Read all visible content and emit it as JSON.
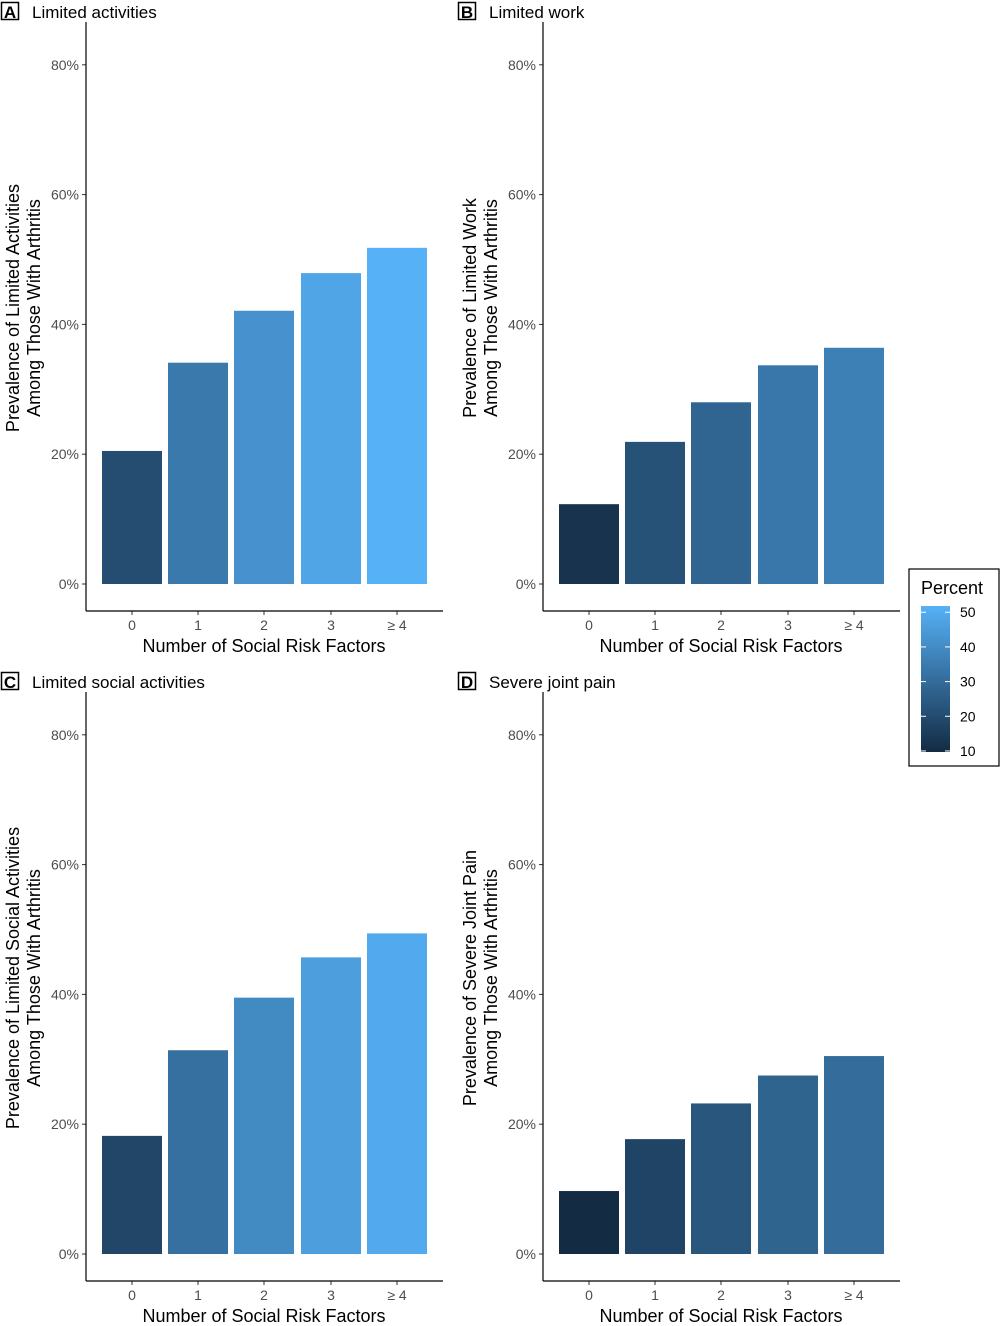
{
  "chart_data": [
    {
      "type": "bar",
      "panel_letter": "A",
      "title": "Limited activities",
      "xlabel": "Number of Social Risk Factors",
      "ylabel": [
        "Prevalence of Limited Activities",
        "Among Those With Arthritis"
      ],
      "categories": [
        "0",
        "1",
        "2",
        "3",
        "≥ 4"
      ],
      "values": [
        20.5,
        34.1,
        42.1,
        47.9,
        51.8
      ],
      "ylim": [
        0,
        86
      ],
      "yticks": [
        "0%",
        "20%",
        "40%",
        "60%",
        "80%"
      ],
      "grid": false
    },
    {
      "type": "bar",
      "panel_letter": "B",
      "title": "Limited work",
      "xlabel": "Number of Social Risk Factors",
      "ylabel": [
        "Prevalence of Limited Work",
        "Among Those With Arthritis"
      ],
      "categories": [
        "0",
        "1",
        "2",
        "3",
        "≥ 4"
      ],
      "values": [
        12.3,
        21.9,
        28.0,
        33.7,
        36.4
      ],
      "ylim": [
        0,
        86
      ],
      "yticks": [
        "0%",
        "20%",
        "40%",
        "60%",
        "80%"
      ],
      "grid": false
    },
    {
      "type": "bar",
      "panel_letter": "C",
      "title": "Limited social activities",
      "xlabel": "Number of Social Risk Factors",
      "ylabel": [
        "Prevalence of Limited Social Activities",
        "Among Those With Arthritis"
      ],
      "categories": [
        "0",
        "1",
        "2",
        "3",
        "≥ 4"
      ],
      "values": [
        18.2,
        31.4,
        39.5,
        45.7,
        49.4
      ],
      "ylim": [
        0,
        86
      ],
      "yticks": [
        "0%",
        "20%",
        "40%",
        "60%",
        "80%"
      ],
      "grid": false
    },
    {
      "type": "bar",
      "panel_letter": "D",
      "title": "Severe joint pain",
      "xlabel": "Number of Social Risk Factors",
      "ylabel": [
        "Prevalence of Severe Joint Pain",
        "Among Those With Arthritis"
      ],
      "categories": [
        "0",
        "1",
        "2",
        "3",
        "≥ 4"
      ],
      "values": [
        9.7,
        17.7,
        23.2,
        27.5,
        30.5
      ],
      "ylim": [
        0,
        86
      ],
      "yticks": [
        "0%",
        "20%",
        "40%",
        "60%",
        "80%"
      ],
      "grid": false
    }
  ],
  "legend": {
    "title": "Percent",
    "labels": [
      "50",
      "40",
      "30",
      "20",
      "10"
    ],
    "placement": "right",
    "color_low": "#132B43",
    "color_high": "#56B1F7",
    "range": [
      9.7,
      51.8
    ]
  }
}
